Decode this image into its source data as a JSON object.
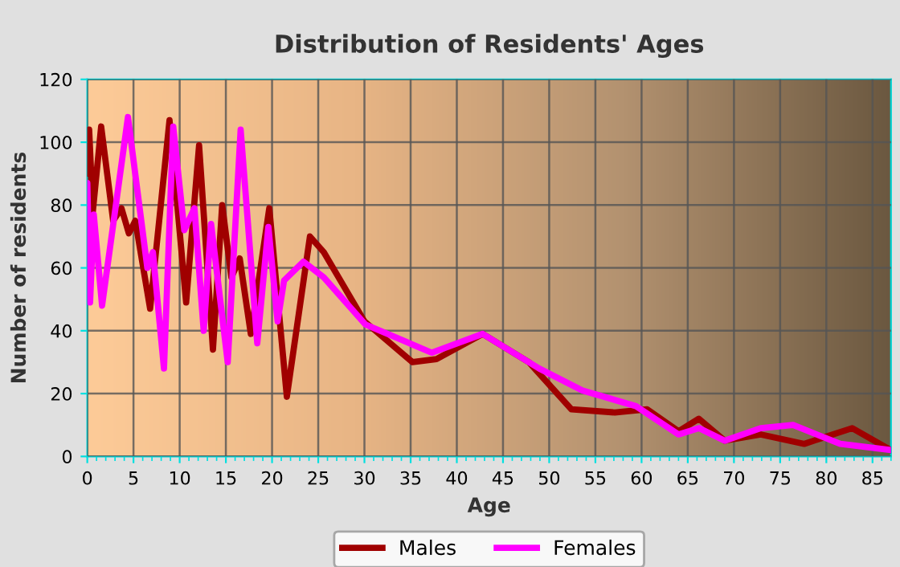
{
  "chart_data": {
    "type": "line",
    "title": "Distribution of Residents' Ages",
    "xlabel": "Age",
    "ylabel": "Number of residents",
    "xlim": [
      0,
      87
    ],
    "xticks": [
      0,
      5,
      10,
      15,
      20,
      25,
      30,
      35,
      40,
      45,
      50,
      55,
      60,
      65,
      70,
      75,
      80,
      85
    ],
    "ylim": [
      0,
      120
    ],
    "yticks": [
      0,
      20,
      40,
      60,
      80,
      100,
      120
    ],
    "grid": true,
    "legend": "bottom",
    "series": [
      {
        "name": "Males",
        "color": "#a00000",
        "x": [
          0,
          0.2,
          0.6,
          1.5,
          2.8,
          3.7,
          4.5,
          5.2,
          6.8,
          8.9,
          10.7,
          12.1,
          13.6,
          14.6,
          15.6,
          16.5,
          17.7,
          19.7,
          21.6,
          24.1,
          25.6,
          30,
          35.2,
          37.8,
          42.8,
          47.8,
          52.4,
          57.1,
          60.6,
          64,
          66.2,
          69,
          72.9,
          77.6,
          82.8,
          87
        ],
        "values": [
          90,
          104,
          78,
          105,
          75,
          79,
          71,
          75,
          47,
          107,
          49,
          99,
          34,
          80,
          57,
          63,
          39,
          79,
          19,
          70,
          65,
          43,
          30,
          31,
          39,
          30,
          15,
          14,
          15,
          8,
          12,
          5,
          7,
          4,
          9,
          2
        ]
      },
      {
        "name": "Females",
        "color": "#ff00ff",
        "x": [
          0,
          0.3,
          0.7,
          1.6,
          4.4,
          6.5,
          7.1,
          8.3,
          9.3,
          10.5,
          11.6,
          12.6,
          13.4,
          15.2,
          16.6,
          18.4,
          19.6,
          20.6,
          21.3,
          23.4,
          25.6,
          30.1,
          37.3,
          42.8,
          48.9,
          53.6,
          59.4,
          64,
          66.2,
          69,
          72.9,
          76.4,
          81.5,
          87
        ],
        "values": [
          87,
          49,
          77,
          48,
          108,
          60,
          65,
          28,
          105,
          72,
          79,
          40,
          74,
          30,
          104,
          36,
          73,
          43,
          56,
          62,
          57,
          42,
          33,
          39,
          28,
          21,
          16,
          7,
          9,
          5,
          9,
          10,
          4,
          2
        ]
      }
    ]
  }
}
